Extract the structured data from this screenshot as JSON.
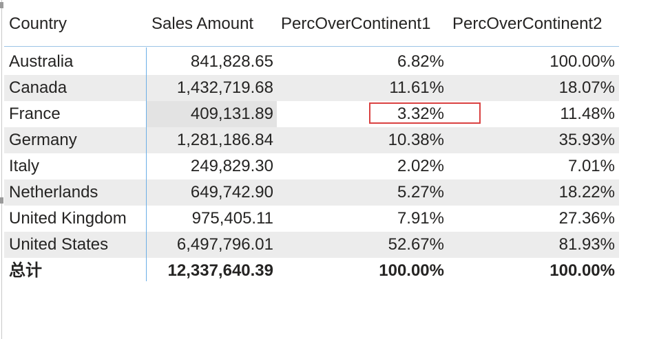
{
  "table": {
    "headers": [
      "Country",
      "Sales Amount",
      "PercOverContinent1",
      "PercOverContinent2"
    ],
    "rows": [
      {
        "country": "Australia",
        "sales": "841,828.65",
        "perc1": "6.82%",
        "perc2": "100.00%"
      },
      {
        "country": "Canada",
        "sales": "1,432,719.68",
        "perc1": "11.61%",
        "perc2": "18.07%"
      },
      {
        "country": "France",
        "sales": "409,131.89",
        "perc1": "3.32%",
        "perc2": "11.48%"
      },
      {
        "country": "Germany",
        "sales": "1,281,186.84",
        "perc1": "10.38%",
        "perc2": "35.93%"
      },
      {
        "country": "Italy",
        "sales": "249,829.30",
        "perc1": "2.02%",
        "perc2": "7.01%"
      },
      {
        "country": "Netherlands",
        "sales": "649,742.90",
        "perc1": "5.27%",
        "perc2": "18.22%"
      },
      {
        "country": "United Kingdom",
        "sales": "975,405.11",
        "perc1": "7.91%",
        "perc2": "27.36%"
      },
      {
        "country": "United States",
        "sales": "6,497,796.01",
        "perc1": "52.67%",
        "perc2": "81.93%"
      }
    ],
    "total": {
      "label": "总计",
      "sales": "12,337,640.39",
      "perc1": "100.00%",
      "perc2": "100.00%"
    }
  },
  "colors": {
    "header_line": "#9bc3e6",
    "row_divider": "#6aaee6",
    "shaded_row": "#ececec",
    "highlight_box": "#d94040"
  }
}
